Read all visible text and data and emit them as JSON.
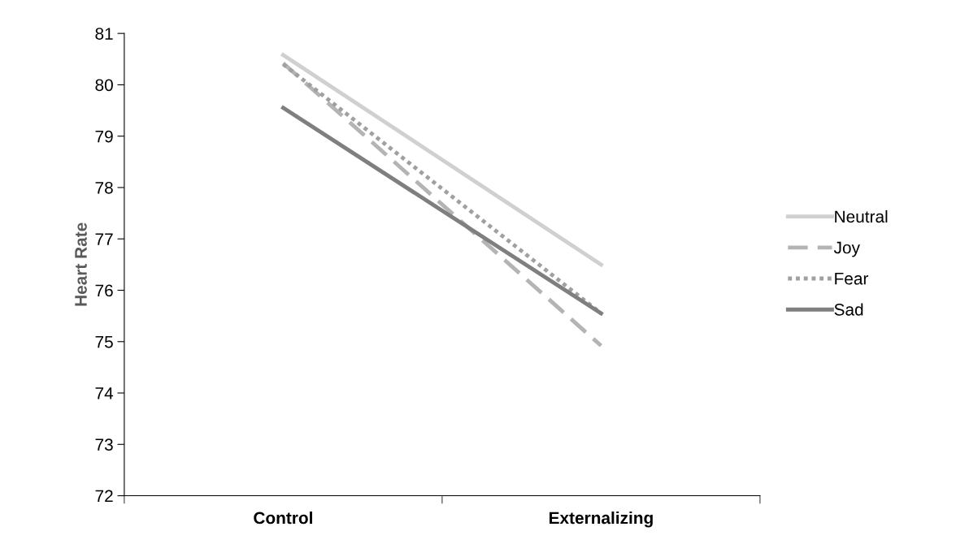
{
  "chart_data": {
    "type": "line",
    "ylabel": "Heart Rate",
    "categories": [
      "Control",
      "Externalizing"
    ],
    "series": [
      {
        "name": "Neutral",
        "color": "#d0d0d0",
        "line_style": "solid",
        "values": [
          80.58,
          76.5
        ]
      },
      {
        "name": "Joy",
        "color": "#b4b4b4",
        "line_style": "dashed",
        "values": [
          80.42,
          74.92
        ]
      },
      {
        "name": "Fear",
        "color": "#a0a0a0",
        "line_style": "dotted",
        "values": [
          80.4,
          75.55
        ]
      },
      {
        "name": "Sad",
        "color": "#7f7f7f",
        "line_style": "solid",
        "values": [
          79.55,
          75.55
        ]
      }
    ],
    "ylim": [
      72,
      81
    ],
    "yticks": [
      72,
      73,
      74,
      75,
      76,
      77,
      78,
      79,
      80,
      81
    ],
    "grid": false,
    "legend": "right",
    "marker": "none"
  }
}
